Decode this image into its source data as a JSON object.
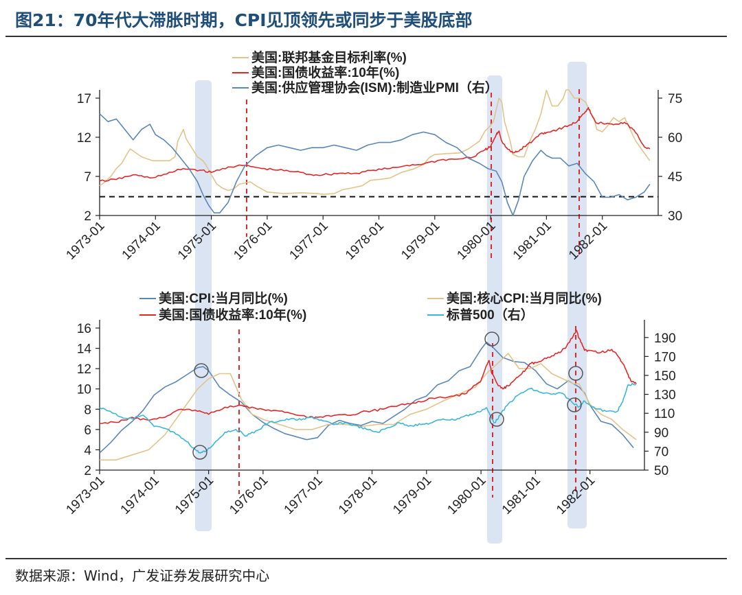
{
  "header": {
    "title": "图21：70年代大滞胀时期，CPI见顶领先或同步于美股底部"
  },
  "footer": {
    "source": "数据来源：Wind，广发证券发展研究中心"
  },
  "colors": {
    "title": "#1f4e79",
    "fed_funds_target": "#e2c48b",
    "treasury_10y": "#e02828",
    "ism_pmi": "#5a86b8",
    "cpi_yoy": "#5a86b8",
    "core_cpi_yoy": "#e2c48b",
    "sp500": "#3cb6d8",
    "highlight_band": "#dbe4f2",
    "marker_line": "#e02828"
  },
  "chart_data": [
    {
      "type": "line",
      "x_tick_labels": [
        "1973-01",
        "1974-01",
        "1975-01",
        "1976-01",
        "1977-01",
        "1978-01",
        "1979-01",
        "1980-01",
        "1981-01",
        "1982-01"
      ],
      "y_left": {
        "ticks": [
          "2",
          "7",
          "12",
          "17"
        ],
        "ylim": [
          2,
          17
        ]
      },
      "y_right": {
        "ticks": [
          "30",
          "45",
          "60",
          "75"
        ],
        "ylim": [
          30,
          75
        ],
        "label": "右"
      },
      "reference_line": {
        "axis": "left",
        "value": 4.4,
        "style": "dashed"
      },
      "legend_placement": "top-center",
      "series": [
        {
          "name": "美国:联邦基金目标利率(%)",
          "axis": "left",
          "key": "fed_funds_target",
          "x": [
            1973.0,
            1973.1,
            1973.2,
            1973.3,
            1973.4,
            1973.5,
            1973.55,
            1973.75,
            1973.95,
            1974.0,
            1974.25,
            1974.35,
            1974.4,
            1974.5,
            1974.55,
            1974.75,
            1974.85,
            1974.9,
            1975.0,
            1975.1,
            1975.2,
            1975.3,
            1975.4,
            1975.5,
            1975.7,
            1975.8,
            1976.0,
            1976.3,
            1976.6,
            1976.9,
            1977.0,
            1977.2,
            1977.35,
            1977.5,
            1977.7,
            1977.85,
            1978.0,
            1978.2,
            1978.4,
            1978.6,
            1978.8,
            1978.9,
            1979.0,
            1979.2,
            1979.45,
            1979.6,
            1979.7,
            1979.8,
            1979.9,
            1980.0,
            1980.05,
            1980.1,
            1980.15,
            1980.2,
            1980.25,
            1980.35,
            1980.4,
            1980.5,
            1980.6,
            1980.65,
            1980.7,
            1980.8,
            1980.9,
            1980.95,
            1981.0,
            1981.05,
            1981.1,
            1981.2,
            1981.3,
            1981.35,
            1981.4,
            1981.5,
            1981.6,
            1981.7,
            1981.8,
            1981.85,
            1981.9,
            1982.0,
            1982.1,
            1982.2,
            1982.3,
            1982.4,
            1982.5,
            1982.55,
            1982.6,
            1982.7,
            1982.8,
            1982.85
          ],
          "values": [
            5.8,
            6.3,
            7.0,
            8.0,
            8.7,
            10.0,
            10.5,
            9.5,
            9.0,
            9.0,
            9.0,
            9.5,
            11.5,
            13.0,
            11.8,
            9.5,
            9.0,
            8.5,
            7.2,
            6.0,
            5.5,
            5.2,
            5.4,
            6.0,
            6.3,
            5.8,
            5.0,
            4.8,
            4.9,
            4.8,
            4.7,
            4.8,
            5.3,
            5.5,
            5.8,
            6.5,
            6.6,
            6.8,
            7.5,
            7.9,
            8.5,
            9.4,
            9.8,
            9.9,
            10.0,
            10.5,
            11.0,
            11.5,
            12.8,
            13.5,
            14.0,
            15.5,
            17.0,
            16.5,
            14.0,
            11.5,
            9.8,
            9.5,
            9.5,
            10.5,
            11.5,
            13.0,
            15.0,
            16.5,
            18.0,
            17.0,
            16.0,
            16.0,
            17.0,
            19.0,
            18.5,
            17.0,
            17.0,
            16.5,
            15.0,
            14.5,
            13.0,
            12.7,
            13.5,
            14.5,
            14.0,
            14.5,
            13.0,
            12.2,
            11.5,
            10.5,
            9.5,
            9.0
          ]
        },
        {
          "name": "美国:国债收益率:10年(%)",
          "axis": "left",
          "key": "treasury_10y",
          "x": [
            1973.0,
            1973.3,
            1973.6,
            1973.9,
            1974.2,
            1974.5,
            1974.8,
            1975.0,
            1975.3,
            1975.6,
            1975.9,
            1976.2,
            1976.5,
            1976.8,
            1977.0,
            1977.3,
            1977.6,
            1977.9,
            1978.2,
            1978.5,
            1978.8,
            1979.1,
            1979.4,
            1979.7,
            1979.9,
            1980.0,
            1980.1,
            1980.15,
            1980.2,
            1980.3,
            1980.4,
            1980.5,
            1980.6,
            1980.75,
            1980.9,
            1981.0,
            1981.2,
            1981.4,
            1981.55,
            1981.7,
            1981.75,
            1981.8,
            1981.9,
            1982.0,
            1982.2,
            1982.4,
            1982.55,
            1982.65,
            1982.75,
            1982.85
          ],
          "values": [
            6.4,
            6.6,
            7.2,
            6.8,
            7.3,
            8.0,
            7.8,
            7.5,
            8.2,
            8.4,
            8.0,
            7.8,
            7.6,
            7.2,
            7.2,
            7.4,
            7.4,
            7.8,
            8.0,
            8.4,
            8.6,
            9.1,
            9.2,
            9.5,
            10.4,
            10.8,
            12.3,
            12.8,
            11.5,
            10.5,
            10.0,
            10.2,
            10.8,
            11.5,
            12.5,
            12.6,
            13.0,
            13.5,
            14.0,
            15.3,
            15.8,
            15.0,
            13.8,
            13.8,
            13.6,
            13.9,
            13.0,
            12.0,
            10.8,
            10.5
          ]
        },
        {
          "name": "美国:供应管理协会(ISM):制造业PMI",
          "axis": "right",
          "key": "ism_pmi",
          "x": [
            1973.0,
            1973.15,
            1973.3,
            1973.45,
            1973.6,
            1973.75,
            1973.9,
            1974.0,
            1974.15,
            1974.3,
            1974.45,
            1974.6,
            1974.75,
            1974.85,
            1974.95,
            1975.05,
            1975.15,
            1975.3,
            1975.45,
            1975.6,
            1975.8,
            1976.0,
            1976.2,
            1976.4,
            1976.6,
            1976.8,
            1977.0,
            1977.2,
            1977.4,
            1977.6,
            1977.8,
            1978.0,
            1978.2,
            1978.4,
            1978.6,
            1978.8,
            1979.0,
            1979.2,
            1979.4,
            1979.6,
            1979.8,
            1979.95,
            1980.1,
            1980.2,
            1980.3,
            1980.4,
            1980.5,
            1980.6,
            1980.75,
            1980.9,
            1981.0,
            1981.1,
            1981.25,
            1981.4,
            1981.55,
            1981.7,
            1981.85,
            1982.0,
            1982.15,
            1982.3,
            1982.45,
            1982.6,
            1982.75,
            1982.85
          ],
          "values": [
            69,
            66,
            67,
            63,
            59,
            63,
            65,
            61,
            59,
            56,
            52,
            48,
            43,
            38,
            34,
            31,
            31,
            35,
            43,
            49,
            53,
            56,
            57,
            56,
            55,
            56,
            56,
            57,
            56,
            55,
            57,
            58,
            58,
            59,
            61,
            62,
            61,
            58,
            56,
            52,
            50,
            48,
            47,
            43,
            35,
            30,
            36,
            45,
            51,
            55,
            53,
            52,
            52,
            49,
            50,
            46,
            43,
            37,
            37,
            38,
            36,
            37,
            39,
            42
          ]
        }
      ]
    },
    {
      "type": "line",
      "x_tick_labels": [
        "1973-01",
        "1974-01",
        "1975-01",
        "1976-01",
        "1977-01",
        "1978-01",
        "1979-01",
        "1980-01",
        "1981-01",
        "1982-01"
      ],
      "y_left": {
        "ticks": [
          "2",
          "4",
          "6",
          "8",
          "10",
          "12",
          "14",
          "16"
        ],
        "ylim": [
          2,
          16
        ]
      },
      "y_right": {
        "ticks": [
          "50",
          "70",
          "90",
          "110",
          "130",
          "150",
          "170",
          "190"
        ],
        "ylim": [
          50,
          200
        ],
        "label": "右"
      },
      "legend_placement": "top",
      "series": [
        {
          "name": "美国:CPI:当月同比(%)",
          "axis": "left",
          "key": "cpi_yoy",
          "x": [
            1973.0,
            1973.2,
            1973.4,
            1973.6,
            1973.8,
            1974.0,
            1974.2,
            1974.4,
            1974.6,
            1974.8,
            1974.9,
            1975.0,
            1975.2,
            1975.4,
            1975.6,
            1975.8,
            1976.0,
            1976.2,
            1976.4,
            1976.6,
            1976.8,
            1977.0,
            1977.2,
            1977.4,
            1977.6,
            1977.8,
            1978.0,
            1978.2,
            1978.4,
            1978.6,
            1978.8,
            1979.0,
            1979.2,
            1979.4,
            1979.6,
            1979.8,
            1980.0,
            1980.1,
            1980.2,
            1980.4,
            1980.6,
            1980.8,
            1981.0,
            1981.2,
            1981.4,
            1981.6,
            1981.8,
            1981.9,
            1982.0,
            1982.2,
            1982.4,
            1982.6,
            1982.8
          ],
          "values": [
            3.7,
            4.7,
            5.9,
            6.8,
            7.9,
            9.4,
            10.2,
            10.7,
            11.4,
            12.1,
            12.2,
            11.8,
            10.2,
            9.4,
            8.7,
            7.5,
            6.7,
            6.1,
            5.6,
            5.3,
            5.0,
            5.2,
            6.4,
            6.9,
            6.6,
            6.4,
            6.8,
            6.6,
            7.3,
            8.0,
            8.9,
            9.3,
            10.4,
            10.8,
            11.8,
            12.2,
            13.9,
            14.6,
            14.2,
            13.1,
            12.7,
            12.6,
            11.8,
            10.5,
            10.0,
            10.8,
            10.2,
            9.6,
            8.4,
            6.8,
            6.5,
            5.5,
            4.2
          ]
        },
        {
          "name": "美国:核心CPI:当月同比(%)",
          "axis": "left",
          "key": "core_cpi_yoy",
          "x": [
            1973.0,
            1973.3,
            1973.6,
            1973.9,
            1974.2,
            1974.4,
            1974.6,
            1974.8,
            1975.0,
            1975.2,
            1975.4,
            1975.6,
            1975.8,
            1976.0,
            1976.3,
            1976.6,
            1976.9,
            1977.2,
            1977.5,
            1977.8,
            1978.1,
            1978.4,
            1978.7,
            1979.0,
            1979.3,
            1979.6,
            1979.9,
            1980.1,
            1980.3,
            1980.5,
            1980.7,
            1980.9,
            1981.1,
            1981.3,
            1981.5,
            1981.7,
            1981.8,
            1981.9,
            1982.0,
            1982.2,
            1982.4,
            1982.6,
            1982.85
          ],
          "values": [
            3.0,
            3.0,
            3.5,
            4.0,
            5.5,
            7.0,
            8.5,
            10.0,
            11.0,
            11.5,
            11.5,
            9.0,
            7.5,
            7.0,
            6.5,
            6.0,
            6.0,
            6.5,
            6.5,
            6.3,
            6.5,
            6.5,
            7.5,
            8.0,
            8.8,
            9.5,
            10.2,
            11.5,
            12.5,
            13.5,
            12.0,
            12.0,
            12.5,
            11.5,
            11.0,
            10.5,
            10.5,
            9.5,
            8.5,
            7.5,
            7.0,
            6.0,
            5.0
          ]
        },
        {
          "name": "美国:国债收益率:10年(%)",
          "axis": "left",
          "key": "treasury_10y",
          "x": [
            1973.0,
            1973.3,
            1973.6,
            1973.9,
            1974.2,
            1974.5,
            1974.8,
            1975.0,
            1975.3,
            1975.6,
            1975.9,
            1976.2,
            1976.5,
            1976.8,
            1977.0,
            1977.3,
            1977.6,
            1977.9,
            1978.2,
            1978.5,
            1978.8,
            1979.1,
            1979.4,
            1979.7,
            1979.9,
            1980.0,
            1980.1,
            1980.15,
            1980.2,
            1980.3,
            1980.4,
            1980.5,
            1980.6,
            1980.75,
            1980.9,
            1981.0,
            1981.2,
            1981.4,
            1981.55,
            1981.7,
            1981.75,
            1981.8,
            1981.9,
            1982.0,
            1982.2,
            1982.4,
            1982.55,
            1982.65,
            1982.75,
            1982.85
          ],
          "values": [
            6.6,
            6.7,
            7.2,
            6.9,
            7.2,
            8.0,
            7.8,
            7.5,
            8.2,
            8.4,
            8.0,
            7.9,
            7.6,
            7.2,
            7.2,
            7.4,
            7.4,
            7.8,
            8.0,
            8.4,
            8.6,
            9.1,
            9.2,
            9.5,
            10.4,
            10.8,
            12.3,
            12.8,
            11.5,
            10.5,
            10.0,
            10.3,
            10.8,
            11.5,
            12.5,
            12.6,
            13.0,
            13.5,
            14.0,
            15.3,
            15.8,
            15.0,
            13.8,
            13.8,
            13.6,
            13.9,
            13.0,
            12.0,
            10.8,
            10.5
          ]
        },
        {
          "name": "标普500",
          "axis": "right",
          "key": "sp500",
          "x": [
            1973.0,
            1973.2,
            1973.4,
            1973.6,
            1973.8,
            1974.0,
            1974.2,
            1974.4,
            1974.6,
            1974.75,
            1974.85,
            1974.95,
            1975.1,
            1975.3,
            1975.5,
            1975.7,
            1975.9,
            1976.1,
            1976.3,
            1976.5,
            1976.7,
            1976.9,
            1977.1,
            1977.3,
            1977.5,
            1977.7,
            1977.9,
            1978.1,
            1978.3,
            1978.5,
            1978.7,
            1978.9,
            1979.1,
            1979.3,
            1979.5,
            1979.7,
            1979.9,
            1980.1,
            1980.2,
            1980.25,
            1980.35,
            1980.5,
            1980.7,
            1980.9,
            1981.1,
            1981.3,
            1981.5,
            1981.7,
            1981.8,
            1981.9,
            1982.1,
            1982.3,
            1982.5,
            1982.6,
            1982.7,
            1982.85
          ],
          "values": [
            116,
            112,
            106,
            104,
            108,
            96,
            94,
            88,
            80,
            72,
            68,
            70,
            78,
            90,
            93,
            86,
            92,
            100,
            102,
            104,
            103,
            106,
            102,
            98,
            100,
            97,
            93,
            90,
            95,
            100,
            97,
            98,
            100,
            104,
            103,
            107,
            110,
            116,
            104,
            100,
            108,
            120,
            130,
            136,
            132,
            130,
            131,
            120,
            117,
            123,
            115,
            112,
            112,
            122,
            140,
            141
          ]
        }
      ]
    }
  ]
}
